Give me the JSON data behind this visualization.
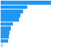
{
  "values": [
    1800,
    950,
    800,
    720,
    660,
    440,
    360,
    320,
    290,
    260,
    100
  ],
  "bar_colors": [
    "#2196F3",
    "#2196F3",
    "#2196F3",
    "#2196F3",
    "#2196F3",
    "#2196F3",
    "#2196F3",
    "#2196F3",
    "#2196F3",
    "#2196F3",
    "#BBDEFB"
  ],
  "background_color": "#ffffff",
  "grid_color": "#cccccc",
  "xlim": [
    0,
    2400
  ]
}
